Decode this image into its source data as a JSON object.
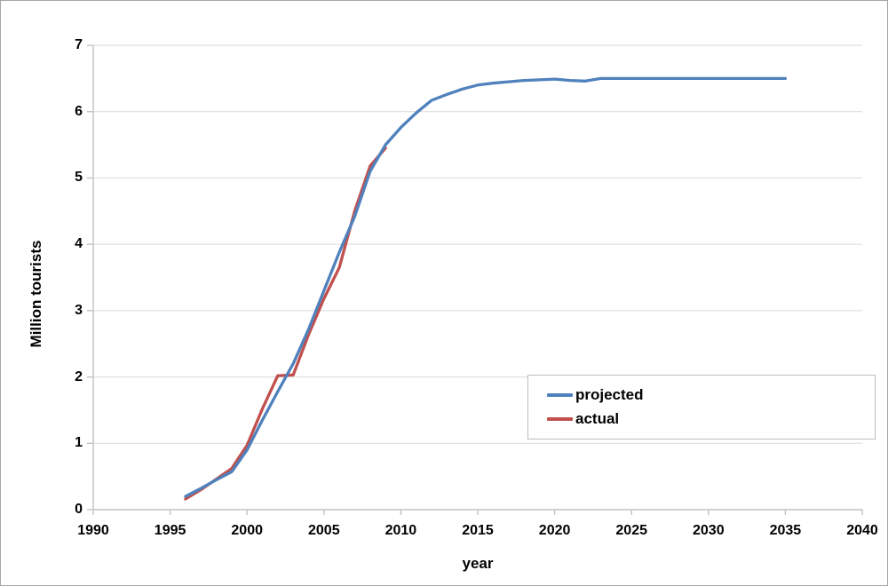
{
  "chart_data": {
    "type": "line",
    "xlabel": "year",
    "ylabel": "Million tourists",
    "xlim": [
      1990,
      2040
    ],
    "ylim": [
      0,
      7
    ],
    "x_ticks": [
      1990,
      1995,
      2000,
      2005,
      2010,
      2015,
      2020,
      2025,
      2030,
      2035,
      2040
    ],
    "y_ticks": [
      0,
      1,
      2,
      3,
      4,
      5,
      6,
      7
    ],
    "grid": "horizontal",
    "legend_position": "center-right-boxed",
    "series": [
      {
        "name": "projected",
        "color": "#4F81BD",
        "x": [
          1996,
          1997,
          1998,
          1999,
          2000,
          2001,
          2002,
          2003,
          2004,
          2005,
          2006,
          2007,
          2008,
          2009,
          2010,
          2011,
          2012,
          2013,
          2014,
          2015,
          2016,
          2017,
          2018,
          2019,
          2020,
          2021,
          2022,
          2023,
          2024,
          2025,
          2026,
          2027,
          2028,
          2029,
          2030,
          2031,
          2032,
          2033,
          2034,
          2035
        ],
        "values": [
          0.2,
          0.32,
          0.45,
          0.57,
          0.9,
          1.35,
          1.78,
          2.2,
          2.72,
          3.3,
          3.88,
          4.42,
          5.1,
          5.5,
          5.76,
          5.98,
          6.17,
          6.26,
          6.34,
          6.4,
          6.43,
          6.45,
          6.47,
          6.48,
          6.49,
          6.47,
          6.46,
          6.5,
          6.5,
          6.5,
          6.5,
          6.5,
          6.5,
          6.5,
          6.5,
          6.5,
          6.5,
          6.5,
          6.5,
          6.5
        ]
      },
      {
        "name": "actual",
        "color": "#C0504D",
        "x": [
          1996,
          1997,
          1998,
          1999,
          2000,
          2001,
          2002,
          2003,
          2004,
          2005,
          2006,
          2007,
          2008,
          2009
        ],
        "values": [
          0.16,
          0.3,
          0.46,
          0.62,
          0.97,
          1.52,
          2.02,
          2.03,
          2.64,
          3.18,
          3.65,
          4.5,
          5.18,
          5.45
        ]
      }
    ]
  },
  "colors": {
    "background": "#FFFFFF",
    "frame_border": "#A6A6A6",
    "gridline": "#D9D9D9",
    "axis_line": "#C2C2C2",
    "legend_border": "#BDBDBD",
    "text": "#000000"
  }
}
